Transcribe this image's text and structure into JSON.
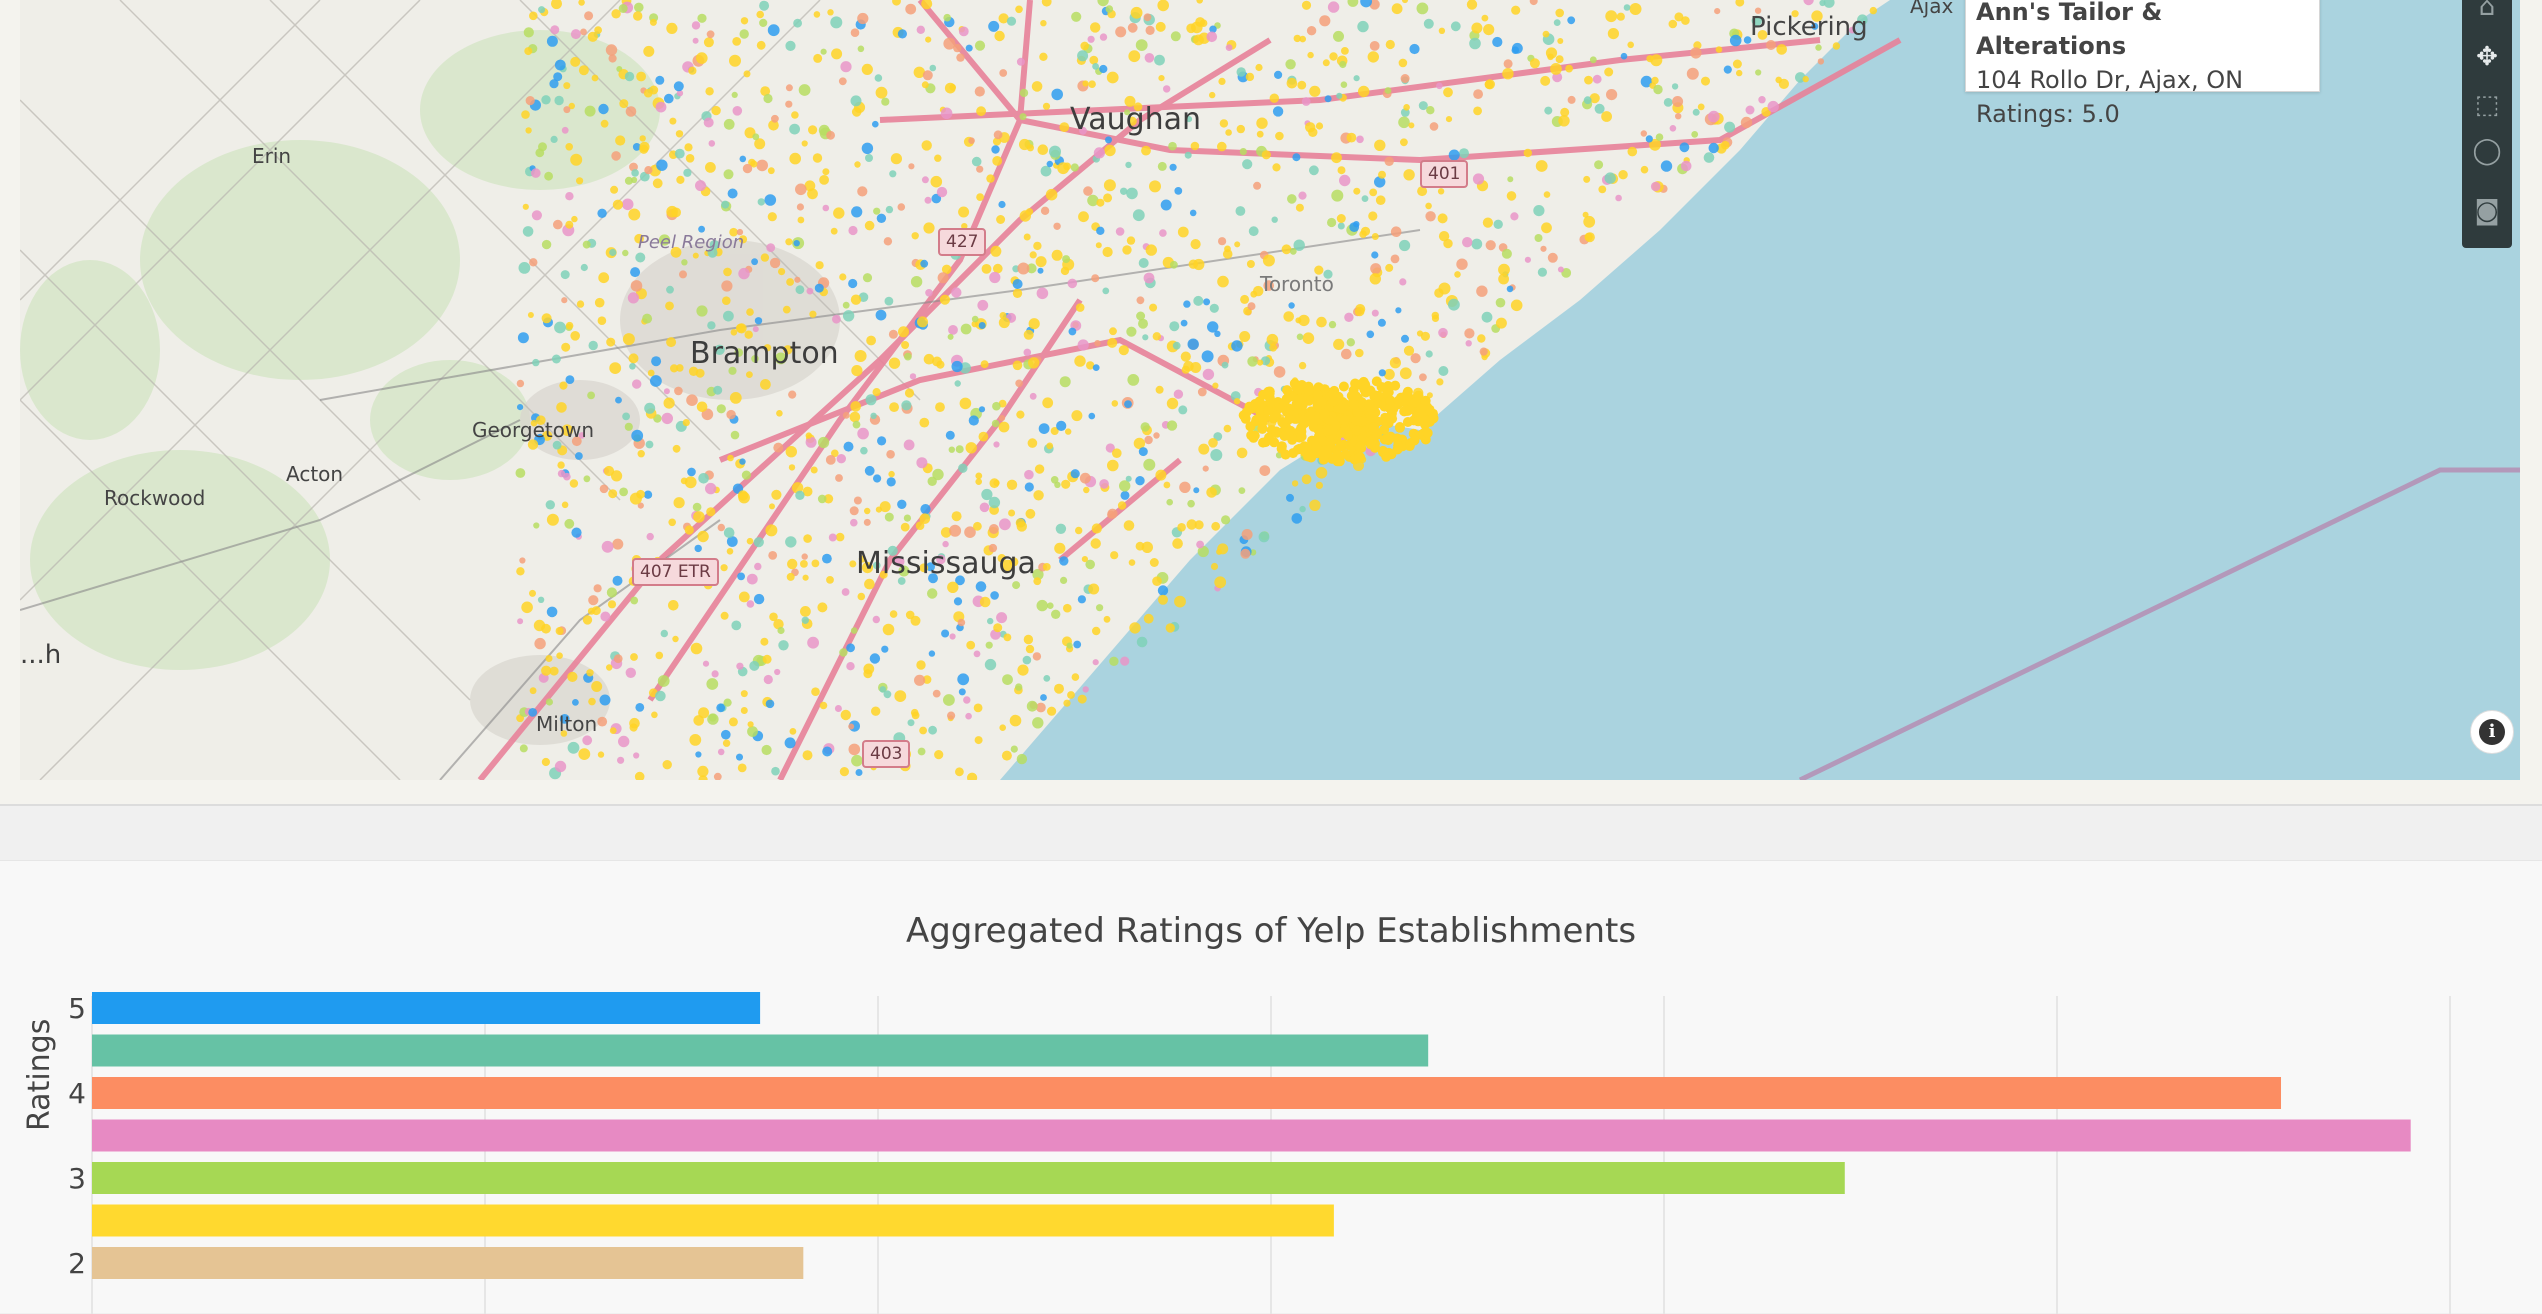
{
  "map": {
    "tooltip": {
      "name": "Ann's Tailor & Alterations",
      "address": "104 Rollo Dr, Ajax, ON",
      "rating": "Ratings: 5.0"
    },
    "labels": {
      "cities": [
        "Vaughan",
        "Brampton",
        "Mississauga"
      ],
      "towns": [
        "Erin",
        "Georgetown",
        "Acton",
        "Rockwood",
        "Milton",
        "Pickering",
        "Ajax",
        "Toronto"
      ],
      "regions": [
        "Peel Region"
      ],
      "partial": "...h"
    },
    "highways": [
      "427",
      "407 ETR",
      "401",
      "403"
    ],
    "modebar_icons": [
      "home-icon",
      "pan-icon",
      "box-select-icon",
      "lasso-icon",
      "camera-icon"
    ],
    "info_icon": "info-icon",
    "colors": {
      "water": "#aad3df",
      "land": "#efeee8",
      "highway": "#e8829a",
      "yellow_dots": "#ffd426"
    }
  },
  "chart_data": {
    "type": "bar",
    "orientation": "horizontal",
    "title": "Aggregated Ratings of Yelp Establishments",
    "ylabel": "Ratings",
    "xlabel": "",
    "categories": [
      5,
      4.5,
      4,
      3.5,
      3,
      2.5,
      2
    ],
    "values": [
      1700,
      3400,
      5570,
      5900,
      4460,
      3160,
      1810
    ],
    "colors": [
      "#1f9bf0",
      "#66c2a5",
      "#fc8d62",
      "#e78ac3",
      "#a6d854",
      "#ffd92f",
      "#e5c494"
    ],
    "y_tick_labels": [
      "5",
      "4",
      "3",
      "2"
    ],
    "xlim": [
      0,
      6000
    ],
    "grid": true
  }
}
